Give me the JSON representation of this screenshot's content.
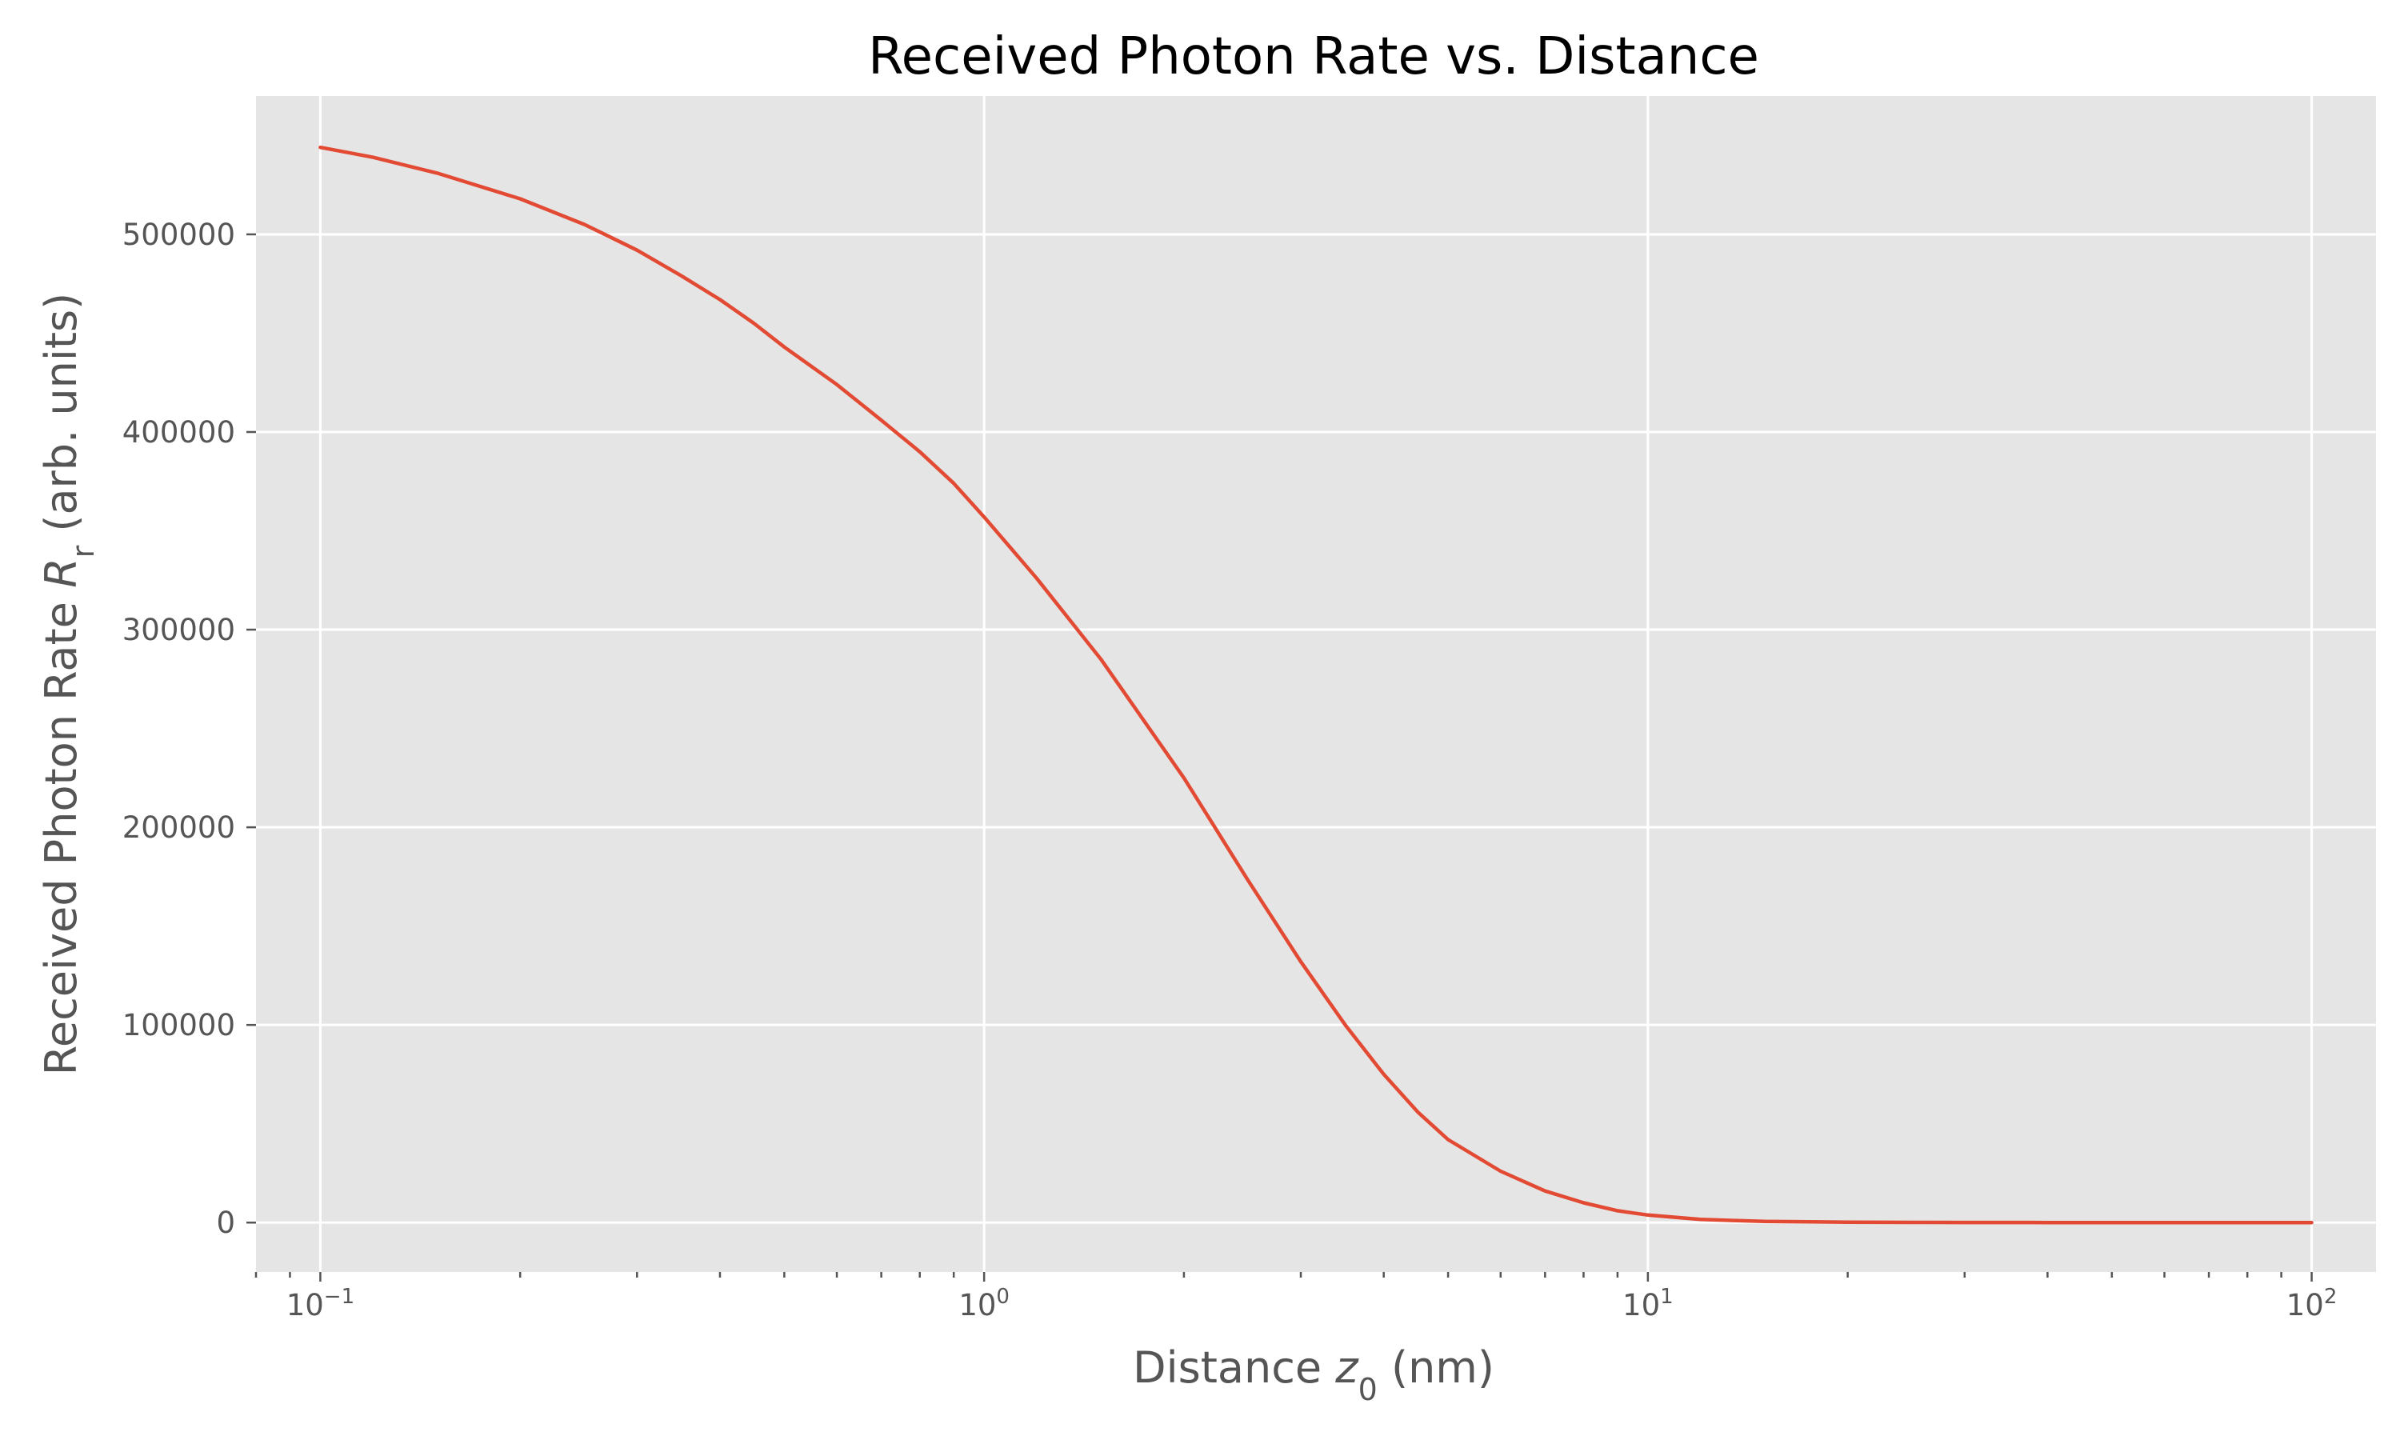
{
  "chart_data": {
    "type": "line",
    "title": "Received Photon Rate vs. Distance",
    "xlabel": {
      "pre": "Distance ",
      "var": "z",
      "sub": "0",
      "post": " (nm)"
    },
    "ylabel": {
      "pre": "Received Photon Rate ",
      "var": "R",
      "sub": "r",
      "post": " (arb. units)"
    },
    "xscale": "log",
    "xlim": [
      0.08,
      125
    ],
    "ylim": [
      -25000,
      570000
    ],
    "grid": true,
    "x_ticks": [
      {
        "value": 0.1,
        "base": "10",
        "exp": "−1"
      },
      {
        "value": 1,
        "base": "10",
        "exp": "0"
      },
      {
        "value": 10,
        "base": "10",
        "exp": "1"
      },
      {
        "value": 100,
        "base": "10",
        "exp": "2"
      }
    ],
    "y_ticks": [
      {
        "value": 0,
        "label": "0"
      },
      {
        "value": 100000,
        "label": "100000"
      },
      {
        "value": 200000,
        "label": "200000"
      },
      {
        "value": 300000,
        "label": "300000"
      },
      {
        "value": 400000,
        "label": "400000"
      },
      {
        "value": 500000,
        "label": "500000"
      }
    ],
    "colors": {
      "background": "#e5e5e5",
      "series": "#e24a33"
    },
    "series": [
      {
        "x": [
          0.1,
          0.12,
          0.15,
          0.2,
          0.25,
          0.3,
          0.35,
          0.4,
          0.45,
          0.5,
          0.6,
          0.7,
          0.8,
          0.9,
          1.0,
          1.2,
          1.5,
          2.0,
          2.5,
          3.0,
          3.5,
          4.0,
          4.5,
          5.0,
          6.0,
          7.0,
          8.0,
          9.0,
          10,
          12,
          15,
          20,
          25,
          30,
          40,
          50,
          70,
          100
        ],
        "y": [
          544000,
          539000,
          531000,
          518000,
          505000,
          492000,
          479000,
          467000,
          455000,
          443000,
          424000,
          406000,
          390000,
          374000,
          357000,
          326000,
          285000,
          225000,
          173000,
          132000,
          100000,
          75000,
          56000,
          42000,
          26000,
          16000,
          10000,
          6000,
          3800,
          1600,
          600,
          200,
          80,
          40,
          15,
          5,
          1,
          0
        ]
      }
    ]
  }
}
